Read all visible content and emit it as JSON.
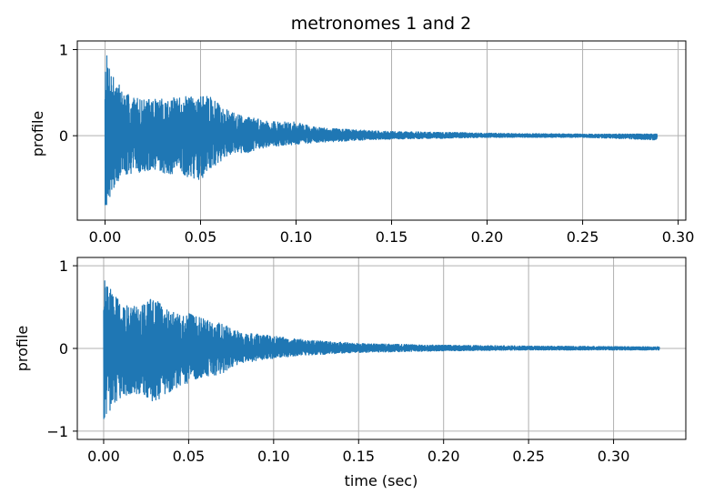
{
  "chart_data": [
    {
      "type": "line",
      "title": "metronomes 1 and 2",
      "xlabel": "",
      "ylabel": "profile",
      "xlim": [
        -0.0145,
        0.304
      ],
      "ylim": [
        -0.98,
        1.1
      ],
      "grid": true,
      "color": "#1f77b4",
      "x_ticks": [
        0.0,
        0.05,
        0.1,
        0.15,
        0.2,
        0.25,
        0.3
      ],
      "x_tick_labels": [
        "0.00",
        "0.05",
        "0.10",
        "0.15",
        "0.20",
        "0.25",
        "0.30"
      ],
      "y_ticks": [
        1,
        0
      ],
      "y_tick_labels": [
        "1",
        "0"
      ],
      "x_range": [
        0.0,
        0.289
      ],
      "envelope": {
        "x": [
          0.0,
          0.002,
          0.004,
          0.01,
          0.02,
          0.035,
          0.045,
          0.05,
          0.055,
          0.065,
          0.075,
          0.08,
          0.09,
          0.1,
          0.11,
          0.13,
          0.15,
          0.18,
          0.2,
          0.25,
          0.289
        ],
        "upper": [
          1.0,
          0.88,
          0.75,
          0.5,
          0.42,
          0.44,
          0.46,
          0.48,
          0.45,
          0.28,
          0.22,
          0.2,
          0.16,
          0.16,
          0.1,
          0.07,
          0.05,
          0.04,
          0.03,
          0.02,
          0.02
        ],
        "lower": [
          -0.85,
          -0.75,
          -0.62,
          -0.45,
          -0.42,
          -0.45,
          -0.48,
          -0.52,
          -0.4,
          -0.22,
          -0.2,
          -0.15,
          -0.12,
          -0.1,
          -0.08,
          -0.06,
          -0.04,
          -0.03,
          -0.02,
          -0.02,
          -0.05
        ]
      }
    },
    {
      "type": "line",
      "title": "",
      "xlabel": "time (sec)",
      "ylabel": "profile",
      "xlim": [
        -0.0155,
        0.3425
      ],
      "ylim": [
        -1.1,
        1.1
      ],
      "grid": true,
      "color": "#1f77b4",
      "x_ticks": [
        0.0,
        0.05,
        0.1,
        0.15,
        0.2,
        0.25,
        0.3
      ],
      "x_tick_labels": [
        "0.00",
        "0.05",
        "0.10",
        "0.15",
        "0.20",
        "0.25",
        "0.30"
      ],
      "y_ticks": [
        1,
        0,
        -1
      ],
      "y_tick_labels": [
        "1",
        "0",
        "−1"
      ],
      "x_range": [
        0.0,
        0.327
      ],
      "envelope": {
        "x": [
          0.0,
          0.002,
          0.005,
          0.01,
          0.02,
          0.03,
          0.035,
          0.045,
          0.05,
          0.06,
          0.07,
          0.08,
          0.1,
          0.12,
          0.15,
          0.2,
          0.25,
          0.327
        ],
        "upper": [
          0.97,
          0.8,
          0.7,
          0.55,
          0.5,
          0.62,
          0.5,
          0.4,
          0.45,
          0.35,
          0.3,
          0.2,
          0.15,
          0.1,
          0.06,
          0.04,
          0.03,
          0.02
        ],
        "lower": [
          -0.98,
          -0.85,
          -0.7,
          -0.6,
          -0.55,
          -0.65,
          -0.6,
          -0.45,
          -0.42,
          -0.35,
          -0.3,
          -0.18,
          -0.12,
          -0.08,
          -0.05,
          -0.03,
          -0.02,
          -0.02
        ]
      }
    }
  ]
}
